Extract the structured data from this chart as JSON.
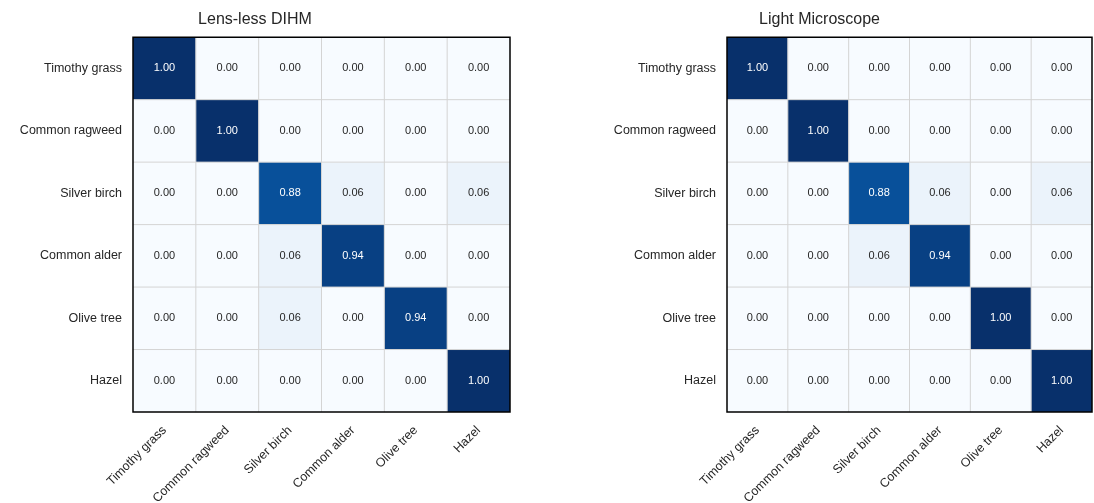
{
  "chart_data": [
    {
      "type": "heatmap",
      "title": "Lens-less DIHM",
      "categories": [
        "Timothy grass",
        "Common ragweed",
        "Silver birch",
        "Common alder",
        "Olive tree",
        "Hazel"
      ],
      "y_categories": [
        "Timothy grass",
        "Common ragweed",
        "Silver birch",
        "Common alder",
        "Olive tree",
        "Hazel"
      ],
      "cells": [
        [
          1.0,
          0.0,
          0.0,
          0.0,
          0.0,
          0.0
        ],
        [
          0.0,
          1.0,
          0.0,
          0.0,
          0.0,
          0.0
        ],
        [
          0.0,
          0.0,
          0.88,
          0.06,
          0.0,
          0.06
        ],
        [
          0.0,
          0.0,
          0.06,
          0.94,
          0.0,
          0.0
        ],
        [
          0.0,
          0.0,
          0.06,
          0.0,
          0.94,
          0.0
        ],
        [
          0.0,
          0.0,
          0.0,
          0.0,
          0.0,
          1.0
        ]
      ],
      "cell_labels": [
        [
          "1.00",
          "0.00",
          "0.00",
          "0.00",
          "0.00",
          "0.00"
        ],
        [
          "0.00",
          "1.00",
          "0.00",
          "0.00",
          "0.00",
          "0.00"
        ],
        [
          "0.00",
          "0.00",
          "0.88",
          "0.06",
          "0.00",
          "0.06"
        ],
        [
          "0.00",
          "0.00",
          "0.06",
          "0.94",
          "0.00",
          "0.00"
        ],
        [
          "0.00",
          "0.00",
          "0.06",
          "0.00",
          "0.94",
          "0.00"
        ],
        [
          "0.00",
          "0.00",
          "0.00",
          "0.00",
          "0.00",
          "1.00"
        ]
      ],
      "data_labels": true,
      "grid": true
    },
    {
      "type": "heatmap",
      "title": "Light Microscope",
      "categories": [
        "Timothy grass",
        "Common ragweed",
        "Silver birch",
        "Common alder",
        "Olive tree",
        "Hazel"
      ],
      "y_categories": [
        "Timothy grass",
        "Common ragweed",
        "Silver birch",
        "Common alder",
        "Olive tree",
        "Hazel"
      ],
      "cells": [
        [
          1.0,
          0.0,
          0.0,
          0.0,
          0.0,
          0.0
        ],
        [
          0.0,
          1.0,
          0.0,
          0.0,
          0.0,
          0.0
        ],
        [
          0.0,
          0.0,
          0.88,
          0.06,
          0.0,
          0.06
        ],
        [
          0.0,
          0.0,
          0.06,
          0.94,
          0.0,
          0.0
        ],
        [
          0.0,
          0.0,
          0.0,
          0.0,
          1.0,
          0.0
        ],
        [
          0.0,
          0.0,
          0.0,
          0.0,
          0.0,
          1.0
        ]
      ],
      "cell_labels": [
        [
          "1.00",
          "0.00",
          "0.00",
          "0.00",
          "0.00",
          "0.00"
        ],
        [
          "0.00",
          "1.00",
          "0.00",
          "0.00",
          "0.00",
          "0.00"
        ],
        [
          "0.00",
          "0.00",
          "0.88",
          "0.06",
          "0.00",
          "0.06"
        ],
        [
          "0.00",
          "0.00",
          "0.06",
          "0.94",
          "0.00",
          "0.00"
        ],
        [
          "0.00",
          "0.00",
          "0.00",
          "0.00",
          "1.00",
          "0.00"
        ],
        [
          "0.00",
          "0.00",
          "0.00",
          "0.00",
          "0.00",
          "1.00"
        ]
      ],
      "data_labels": true,
      "grid": true
    }
  ]
}
